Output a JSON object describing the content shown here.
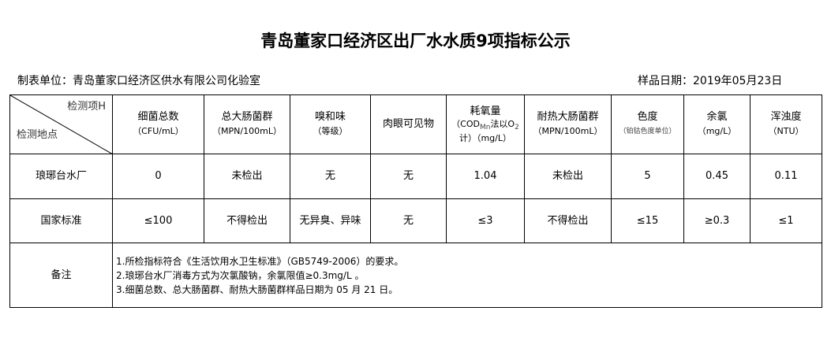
{
  "title": "青岛董家口经济区出厂水水质9项指标公示",
  "unit": "制表单位：青岛董家口经济区供水有限公司化验室",
  "date": "样品日期：2019年05月23日",
  "corner": {
    "top": "检测项H",
    "bottom": "检测地点"
  },
  "headers": [
    {
      "name": "细菌总数",
      "unit": "（CFU/mL）"
    },
    {
      "name": "总大肠菌群",
      "unit": "（MPN/100mL）"
    },
    {
      "name": "嗅和味",
      "unit": "（等级）"
    },
    {
      "name": "肉眼可见物",
      "unit": ""
    },
    {
      "name": "耗氧量",
      "unit": "（COD",
      "sub": "Mn",
      "unit2": "法以O",
      "sub2": "2",
      "unit3": "计）（mg/L）"
    },
    {
      "name": "耐热大肠菌群",
      "unit": "（MPN/100mL）"
    },
    {
      "name": "色度",
      "unit": "（铂钴色度单位）"
    },
    {
      "name": "余氯",
      "unit": "（mg/L）"
    },
    {
      "name": "浑浊度",
      "unit": "（NTU）"
    }
  ],
  "rows": [
    {
      "label": "琅琊台水厂",
      "values": [
        "0",
        "未检出",
        "无",
        "无",
        "1.04",
        "未检出",
        "5",
        "0.45",
        "0.11"
      ]
    },
    {
      "label": "国家标准",
      "values": [
        "≤100",
        "不得检出",
        "无异臭、异味",
        "无",
        "≤3",
        "不得检出",
        "≤15",
        "≥0.3",
        "≤1"
      ]
    }
  ],
  "notes": {
    "label": "备注",
    "lines": [
      "1.所检指标符合《生活饮用水卫生标准》（GB5749-2006）的要求。",
      "2.琅琊台水厂消毒方式为次氯酸钠，余氯限值≥0.3mg/L 。",
      "3.细菌总数、总大肠菌群、耐热大肠菌群样品日期为 05 月 21 日。"
    ]
  }
}
